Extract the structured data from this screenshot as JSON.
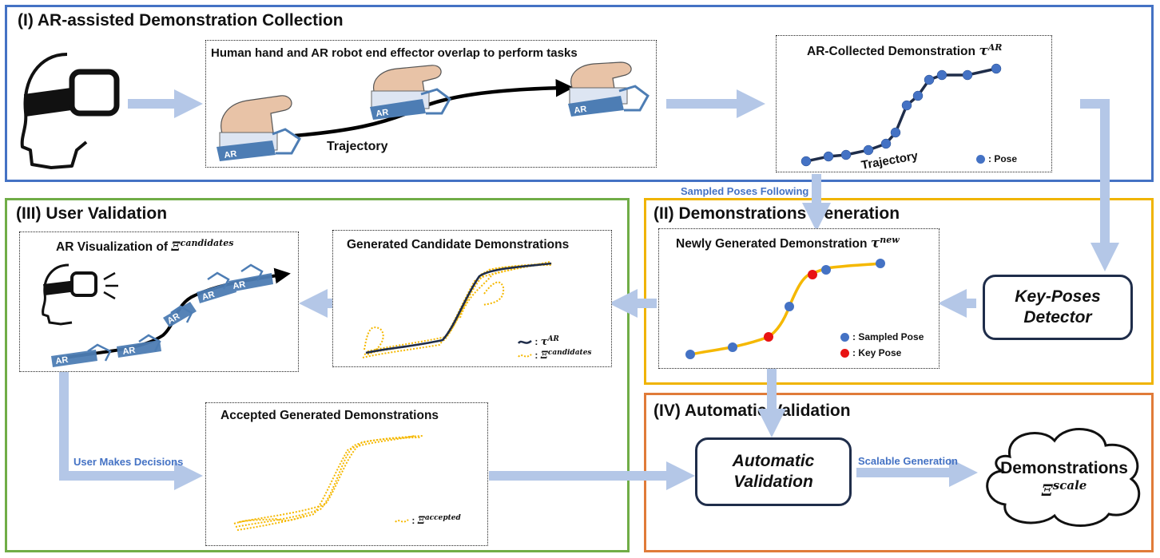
{
  "panels": {
    "collection": {
      "title": "(I) AR-assisted Demonstration Collection"
    },
    "generation": {
      "title": "(II) Demonstrations Generation"
    },
    "user_validation": {
      "title": "(III) User Validation"
    },
    "automatic_validation": {
      "title": "(IV) Automatic Validation"
    }
  },
  "hand_box": {
    "title": "Human hand and AR robot end effector overlap to perform tasks",
    "trajectory_label": "Trajectory",
    "ar_tag": "AR"
  },
  "ar_collected": {
    "title": "AR-Collected Demonstration",
    "symbol": "τ",
    "superscript": "AR",
    "trajectory_label": "Trajectory",
    "legend_pose": ": Pose"
  },
  "sampled_label": "Sampled Poses Following",
  "new_demo": {
    "title": "Newly Generated Demonstration",
    "symbol": "τ",
    "superscript": "new",
    "legend_sampled": ": Sampled Pose",
    "legend_key": ": Key Pose"
  },
  "key_poses_detector": {
    "line1": "Key-Poses",
    "line2": "Detector"
  },
  "candidates": {
    "title": "Generated Candidate Demonstrations",
    "legend_tau_sup": "AR",
    "legend_xi_sup": "candidates"
  },
  "ar_vis": {
    "title": "AR Visualization of",
    "symbol": "Ξ",
    "superscript": "candidates",
    "ar_tag": "AR"
  },
  "accepted": {
    "title": "Accepted Generated Demonstrations",
    "legend_sup": "accepted"
  },
  "user_decisions_label": "User Makes Decisions",
  "auto_validation": {
    "line1": "Automatic",
    "line2": "Validation"
  },
  "scalable_label": "Scalable Generation",
  "cloud": {
    "line1": "Demonstrations",
    "symbol": "Ξ",
    "superscript": "scale"
  },
  "colors": {
    "blue_panel": "#4472c4",
    "green_panel": "#70ad47",
    "yellow_panel": "#f0b400",
    "orange_panel": "#e07b39",
    "arrow": "#b4c7e7",
    "pose_dot": "#4472c4",
    "key_pose_dot": "#e81313",
    "gold_line": "#f5b800",
    "traj_dark": "#1f2d4a"
  }
}
